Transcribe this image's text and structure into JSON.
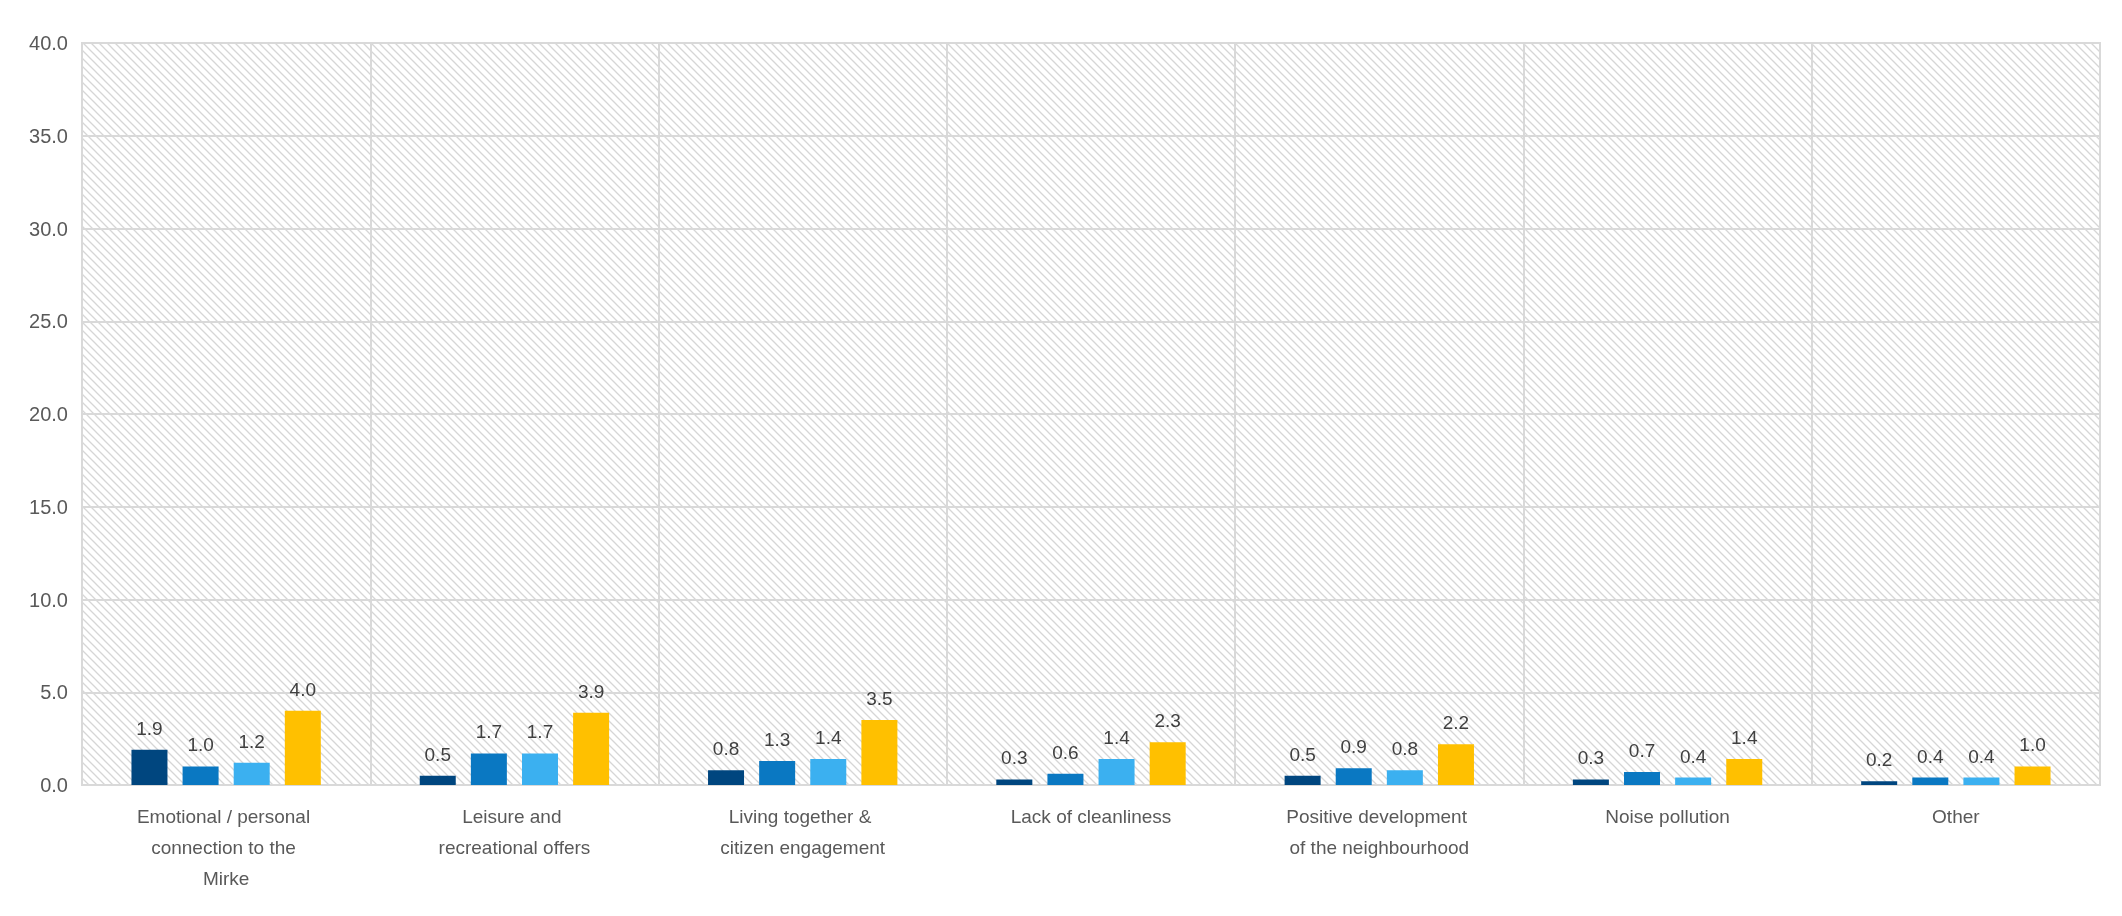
{
  "chart_data": {
    "type": "bar",
    "categories": [
      "Emotional / personal connection to the Mirke",
      "Leisure and recreational offers",
      "Living together & citizen engagement",
      "Lack of cleanliness",
      "Positive development of the neighbourhood",
      "Noise pollution",
      "Other"
    ],
    "series": [
      {
        "color": "#00467f",
        "values": [
          1.9,
          0.5,
          0.8,
          0.3,
          0.5,
          0.3,
          0.2
        ],
        "value_labels": [
          "1.9",
          "0.5",
          "0.8",
          "0.3",
          "0.5",
          "0.3",
          "0.2"
        ]
      },
      {
        "color": "#0a78c2",
        "values": [
          1.0,
          1.7,
          1.3,
          0.6,
          0.9,
          0.7,
          0.4
        ],
        "value_labels": [
          "1.0",
          "1.7",
          "1.3",
          "0.6",
          "0.9",
          "0.7",
          "0.4"
        ]
      },
      {
        "color": "#3bb0f0",
        "values": [
          1.2,
          1.7,
          1.4,
          1.4,
          0.8,
          0.4,
          0.4
        ],
        "value_labels": [
          "1.2",
          "1.7",
          "1.4",
          "1.4",
          "0.8",
          "0.4",
          "0.4"
        ]
      },
      {
        "color": "#ffc000",
        "values": [
          4.0,
          3.9,
          3.5,
          2.3,
          2.2,
          1.4,
          1.0
        ],
        "value_labels": [
          "4.0",
          "3.9",
          "3.5",
          "2.3",
          "2.2",
          "1.4",
          "1.0"
        ]
      }
    ],
    "ylim": [
      0,
      40
    ],
    "yticks": [
      {
        "value": 0,
        "label": "0.0"
      },
      {
        "value": 5,
        "label": "5.0"
      },
      {
        "value": 10,
        "label": "10.0"
      },
      {
        "value": 15,
        "label": "15.0"
      },
      {
        "value": 20,
        "label": "20.0"
      },
      {
        "value": 25,
        "label": "25.0"
      },
      {
        "value": 30,
        "label": "30.0"
      },
      {
        "value": 35,
        "label": "35.0"
      },
      {
        "value": 40,
        "label": "40.0"
      }
    ],
    "grid": true
  }
}
